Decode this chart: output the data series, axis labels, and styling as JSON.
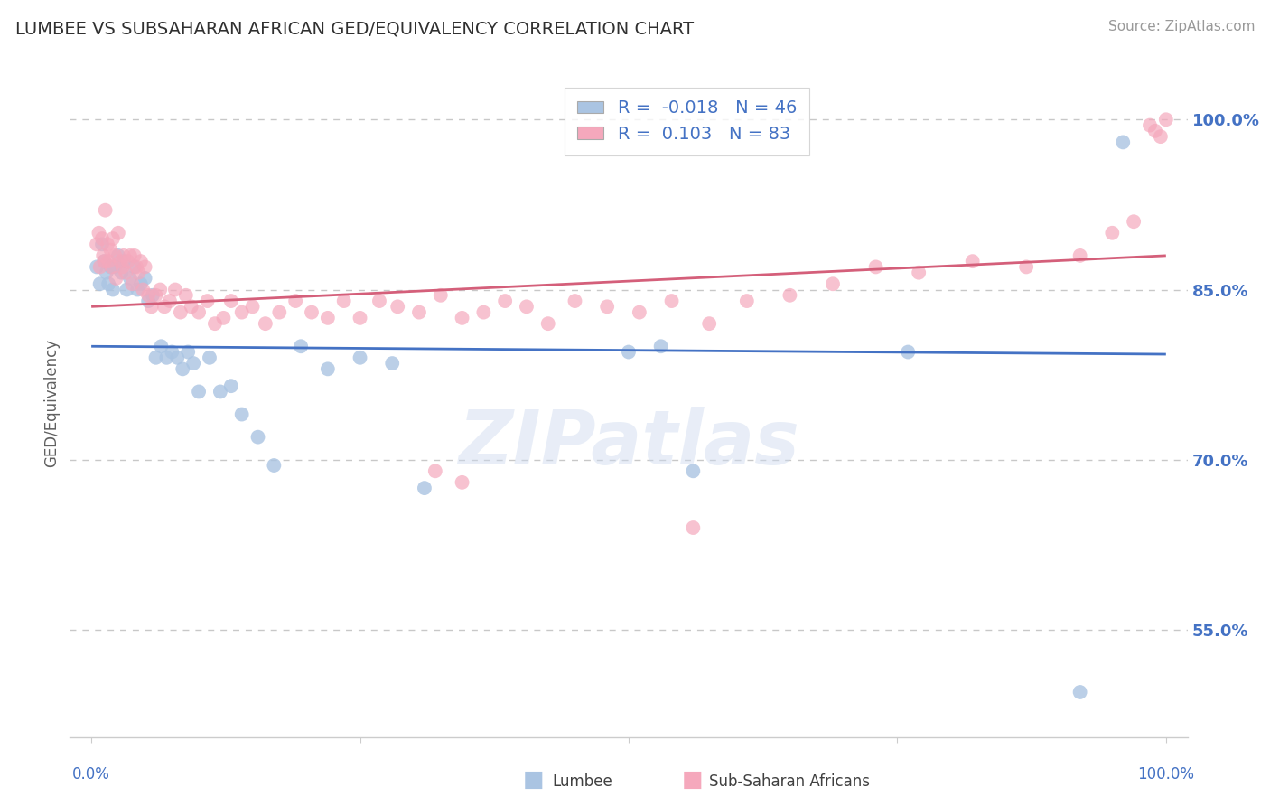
{
  "title": "LUMBEE VS SUBSAHARAN AFRICAN GED/EQUIVALENCY CORRELATION CHART",
  "source": "Source: ZipAtlas.com",
  "ylabel": "GED/Equivalency",
  "legend_lumbee_label": "Lumbee",
  "legend_subsaharan_label": "Sub-Saharan Africans",
  "lumbee_R": -0.018,
  "lumbee_N": 46,
  "subsaharan_R": 0.103,
  "subsaharan_N": 83,
  "lumbee_color": "#aac4e2",
  "subsaharan_color": "#f5a8bc",
  "lumbee_line_color": "#4472c4",
  "subsaharan_line_color": "#d45f7a",
  "ytick_values": [
    0.55,
    0.7,
    0.85,
    1.0
  ],
  "ymin": 0.455,
  "ymax": 1.045,
  "xmin": -0.02,
  "xmax": 1.02,
  "lumbee_x": [
    0.005,
    0.008,
    0.01,
    0.012,
    0.014,
    0.016,
    0.018,
    0.02,
    0.022,
    0.025,
    0.028,
    0.03,
    0.033,
    0.036,
    0.04,
    0.043,
    0.046,
    0.05,
    0.053,
    0.057,
    0.06,
    0.065,
    0.07,
    0.075,
    0.08,
    0.085,
    0.09,
    0.095,
    0.1,
    0.11,
    0.12,
    0.13,
    0.14,
    0.155,
    0.17,
    0.195,
    0.22,
    0.25,
    0.28,
    0.31,
    0.5,
    0.53,
    0.56,
    0.76,
    0.92,
    0.96
  ],
  "lumbee_y": [
    0.87,
    0.855,
    0.89,
    0.875,
    0.865,
    0.855,
    0.87,
    0.85,
    0.87,
    0.88,
    0.865,
    0.875,
    0.85,
    0.86,
    0.87,
    0.85,
    0.855,
    0.86,
    0.84,
    0.845,
    0.79,
    0.8,
    0.79,
    0.795,
    0.79,
    0.78,
    0.795,
    0.785,
    0.76,
    0.79,
    0.76,
    0.765,
    0.74,
    0.72,
    0.695,
    0.8,
    0.78,
    0.79,
    0.785,
    0.675,
    0.795,
    0.8,
    0.69,
    0.795,
    0.495,
    0.98
  ],
  "subsaharan_x": [
    0.005,
    0.007,
    0.008,
    0.01,
    0.011,
    0.012,
    0.013,
    0.015,
    0.016,
    0.018,
    0.019,
    0.02,
    0.022,
    0.023,
    0.025,
    0.027,
    0.029,
    0.03,
    0.032,
    0.034,
    0.036,
    0.038,
    0.04,
    0.042,
    0.044,
    0.046,
    0.048,
    0.05,
    0.053,
    0.056,
    0.06,
    0.064,
    0.068,
    0.073,
    0.078,
    0.083,
    0.088,
    0.093,
    0.1,
    0.108,
    0.115,
    0.123,
    0.13,
    0.14,
    0.15,
    0.162,
    0.175,
    0.19,
    0.205,
    0.22,
    0.235,
    0.25,
    0.268,
    0.285,
    0.305,
    0.325,
    0.345,
    0.365,
    0.385,
    0.405,
    0.425,
    0.45,
    0.48,
    0.51,
    0.54,
    0.575,
    0.61,
    0.65,
    0.69,
    0.73,
    0.77,
    0.82,
    0.87,
    0.92,
    0.95,
    0.97,
    0.985,
    0.99,
    0.995,
    1.0,
    0.32,
    0.345,
    0.56
  ],
  "subsaharan_y": [
    0.89,
    0.9,
    0.87,
    0.895,
    0.88,
    0.875,
    0.92,
    0.89,
    0.875,
    0.885,
    0.87,
    0.895,
    0.88,
    0.86,
    0.9,
    0.875,
    0.87,
    0.88,
    0.865,
    0.875,
    0.88,
    0.855,
    0.88,
    0.87,
    0.865,
    0.875,
    0.85,
    0.87,
    0.845,
    0.835,
    0.845,
    0.85,
    0.835,
    0.84,
    0.85,
    0.83,
    0.845,
    0.835,
    0.83,
    0.84,
    0.82,
    0.825,
    0.84,
    0.83,
    0.835,
    0.82,
    0.83,
    0.84,
    0.83,
    0.825,
    0.84,
    0.825,
    0.84,
    0.835,
    0.83,
    0.845,
    0.825,
    0.83,
    0.84,
    0.835,
    0.82,
    0.84,
    0.835,
    0.83,
    0.84,
    0.82,
    0.84,
    0.845,
    0.855,
    0.87,
    0.865,
    0.875,
    0.87,
    0.88,
    0.9,
    0.91,
    0.995,
    0.99,
    0.985,
    1.0,
    0.69,
    0.68,
    0.64
  ],
  "background_color": "#ffffff",
  "grid_color": "#c8c8c8",
  "tick_color": "#4472c4",
  "title_color": "#303030",
  "watermark_text": "ZIPatlas",
  "watermark_color": "#ccd9ee",
  "watermark_alpha": 0.45,
  "lumbee_line_y0": 0.8,
  "lumbee_line_y1": 0.793,
  "subsaharan_line_y0": 0.835,
  "subsaharan_line_y1": 0.88
}
